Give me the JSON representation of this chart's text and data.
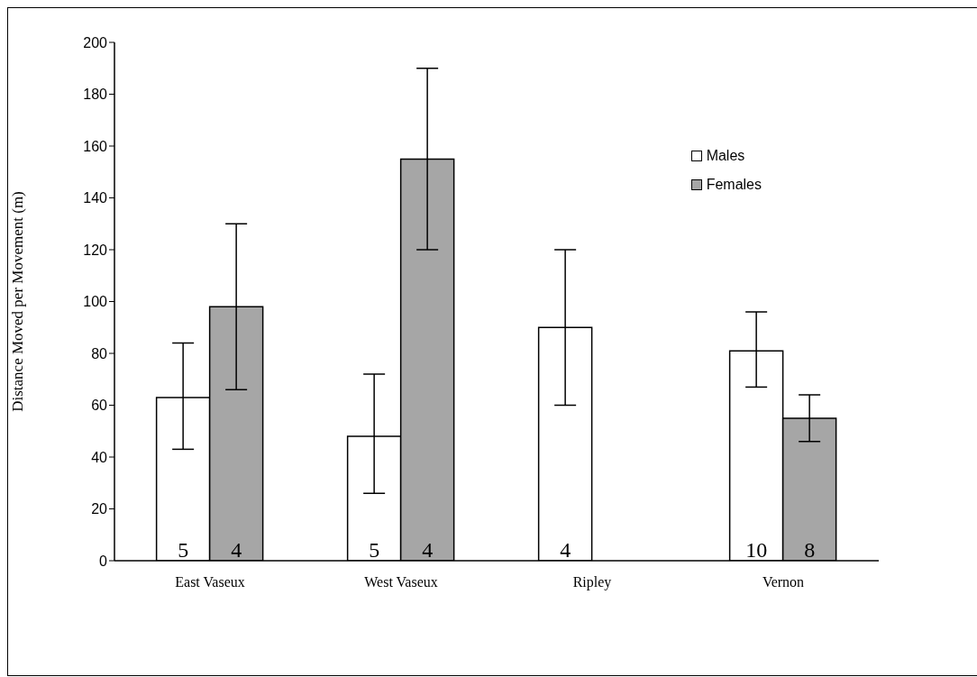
{
  "chart_data": {
    "type": "bar",
    "ylabel": "Distance Moved per Movement (m)",
    "categories": [
      "East Vaseux",
      "West Vaseux",
      "Ripley",
      "Vernon"
    ],
    "series": [
      {
        "name": "Males",
        "color": "#ffffff",
        "values": [
          63,
          48,
          90,
          81
        ],
        "errors": [
          [
            43,
            84
          ],
          [
            26,
            72
          ],
          [
            60,
            120
          ],
          [
            67,
            96
          ]
        ]
      },
      {
        "name": "Females",
        "color": "#a6a6a6",
        "values": [
          98,
          155,
          null,
          55
        ],
        "errors": [
          [
            66,
            130
          ],
          [
            120,
            190
          ],
          null,
          [
            46,
            64
          ]
        ]
      }
    ],
    "annotations": [
      {
        "text": "5",
        "x": "East Vaseux",
        "y": 0
      },
      {
        "text": "4",
        "x": "East Vaseux",
        "y": 0
      },
      {
        "text": "5",
        "x": "West Vaseux",
        "y": 0
      },
      {
        "text": "4",
        "x": "West Vaseux",
        "y": 0
      },
      {
        "text": "4",
        "x": "Ripley",
        "y": 0
      },
      {
        "text": "10",
        "x": "Vernon",
        "y": 0
      },
      {
        "text": "8",
        "x": "Vernon",
        "y": 0
      }
    ],
    "ylim": [
      0,
      200
    ],
    "yticks": [
      0,
      20,
      40,
      60,
      80,
      100,
      120,
      140,
      160,
      180,
      200
    ],
    "grid": false,
    "legend": "top right"
  }
}
